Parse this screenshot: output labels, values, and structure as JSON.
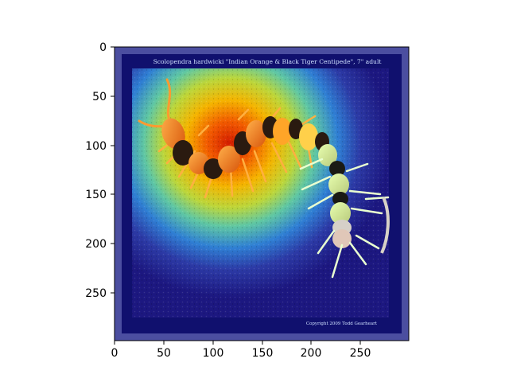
{
  "image": {
    "subject": "centipede",
    "overlay": "heatmap-jet",
    "caption_top": "Scolopendra hardwicki \"Indian Orange & Black Tiger Centipede\", 7\" adult",
    "caption_bottom": "Copyright 2009  Todd Gearheart"
  },
  "colors": {
    "frame_outer": "#4b4ea0",
    "frame_inner": "#10106e",
    "background": "#3a2f9c",
    "hot": "#d31c00",
    "warm": "#f5b400",
    "mid": "#7fd35a",
    "cool": "#2a8fd0",
    "centipede_orange": "#ff8a1c",
    "centipede_black": "#2a1a10"
  },
  "axes": {
    "xlim": [
      0,
      299
    ],
    "ylim": [
      299,
      0
    ],
    "xticks": [
      "0",
      "50",
      "100",
      "150",
      "200",
      "250"
    ],
    "yticks": [
      "0",
      "50",
      "100",
      "150",
      "200",
      "250"
    ]
  }
}
